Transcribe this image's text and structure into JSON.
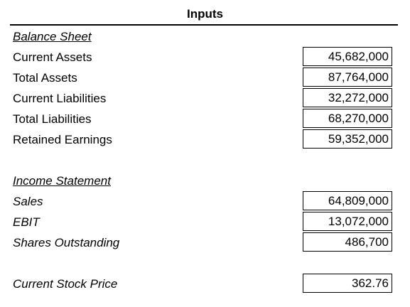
{
  "title": "Inputs",
  "balance_sheet": {
    "heading": "Balance Sheet",
    "rows": [
      {
        "label": "Current Assets",
        "value": "45,682,000"
      },
      {
        "label": "Total Assets",
        "value": "87,764,000"
      },
      {
        "label": "Current Liabilities",
        "value": "32,272,000"
      },
      {
        "label": "Total Liabilities",
        "value": "68,270,000"
      },
      {
        "label": "Retained Earnings",
        "value": "59,352,000"
      }
    ]
  },
  "income_statement": {
    "heading": "Income Statement",
    "rows": [
      {
        "label": "Sales",
        "value": "64,809,000"
      },
      {
        "label": "EBIT",
        "value": "13,072,000"
      },
      {
        "label": "Shares Outstanding",
        "value": "486,700"
      }
    ]
  },
  "stock": {
    "label": "Current Stock Price",
    "value": "362.76"
  }
}
